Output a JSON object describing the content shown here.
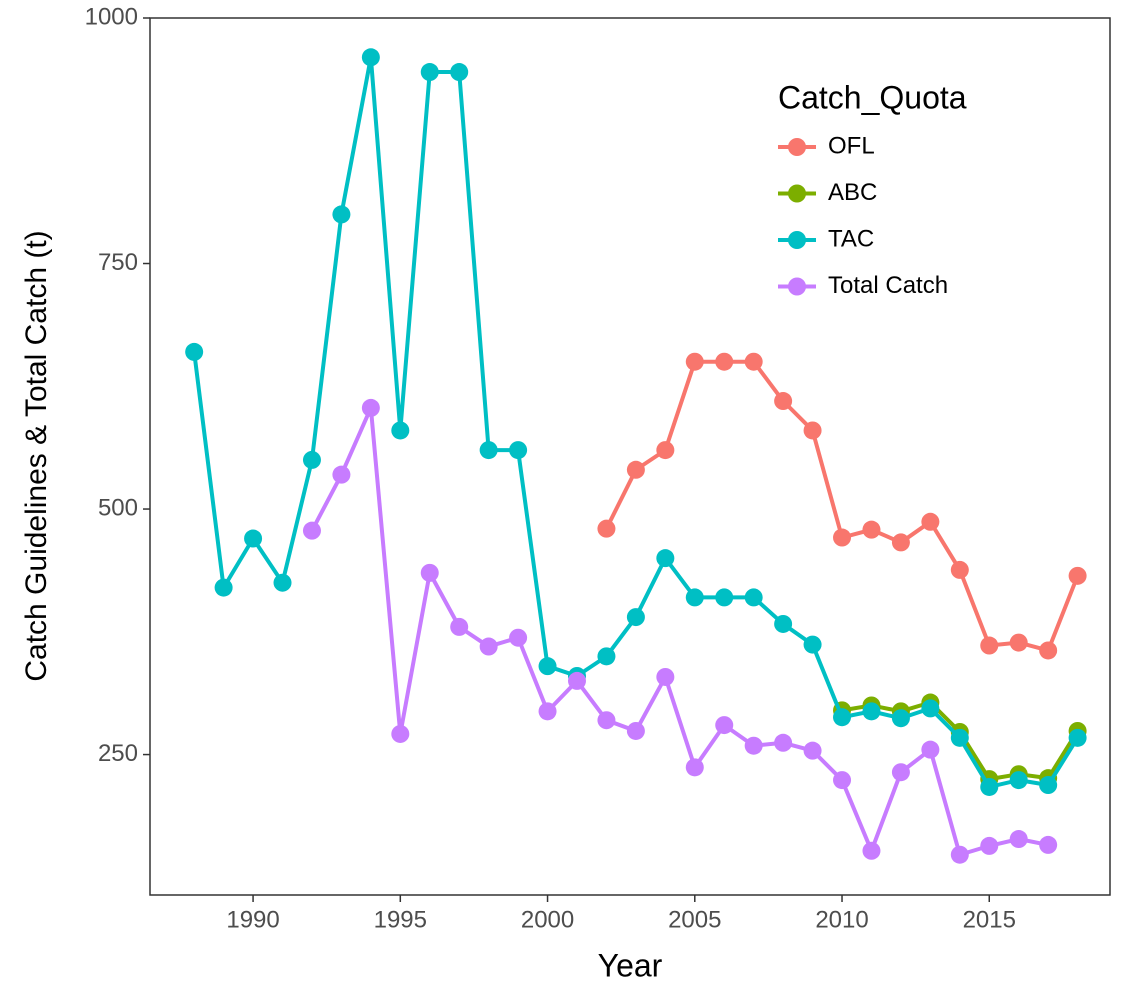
{
  "chart_data": {
    "type": "line",
    "x_label": "Year",
    "y_label": "Catch Guidelines & Total Catch (t)",
    "x": [
      1988,
      1989,
      1990,
      1991,
      1992,
      1993,
      1994,
      1995,
      1996,
      1997,
      1998,
      1999,
      2000,
      2001,
      2002,
      2003,
      2004,
      2005,
      2006,
      2007,
      2008,
      2009,
      2010,
      2011,
      2012,
      2013,
      2014,
      2015,
      2016,
      2017,
      2018
    ],
    "xlim": [
      1986.5,
      2019.1
    ],
    "xticks": [
      1990,
      1995,
      2000,
      2005,
      2010,
      2015
    ],
    "ylim": [
      107,
      1000
    ],
    "yticks": [
      250,
      500,
      750,
      1000
    ],
    "legend_title": "Catch_Quota",
    "legend_position": "top right",
    "grid": false,
    "series": [
      {
        "name": "OFL",
        "color": "#F8766D",
        "values": [
          null,
          null,
          null,
          null,
          null,
          null,
          null,
          null,
          null,
          null,
          null,
          null,
          null,
          null,
          480,
          540,
          560,
          650,
          650,
          650,
          610,
          580,
          471,
          479,
          466,
          487,
          438,
          361,
          364,
          356,
          432
        ]
      },
      {
        "name": "ABC",
        "color": "#7CAE00",
        "values": [
          null,
          null,
          null,
          null,
          null,
          null,
          null,
          null,
          null,
          null,
          null,
          null,
          null,
          null,
          null,
          null,
          null,
          null,
          null,
          null,
          null,
          null,
          295,
          300,
          294,
          303,
          273,
          225,
          230,
          226,
          274
        ]
      },
      {
        "name": "TAC",
        "color": "#00BFC4",
        "values": [
          660,
          420,
          470,
          425,
          550,
          800,
          960,
          580,
          945,
          945,
          560,
          560,
          340,
          330,
          350,
          390,
          450,
          410,
          410,
          410,
          383,
          362,
          288,
          294,
          287,
          297,
          267,
          217,
          224,
          219,
          267
        ]
      },
      {
        "name": "Total Catch",
        "color": "#C77CFF",
        "values": [
          null,
          null,
          null,
          null,
          478,
          535,
          603,
          271,
          435,
          380,
          360,
          369,
          294,
          325,
          285,
          274,
          329,
          237,
          280,
          259,
          262,
          254,
          224,
          152,
          232,
          255,
          148,
          157,
          164,
          158,
          null
        ]
      }
    ]
  }
}
